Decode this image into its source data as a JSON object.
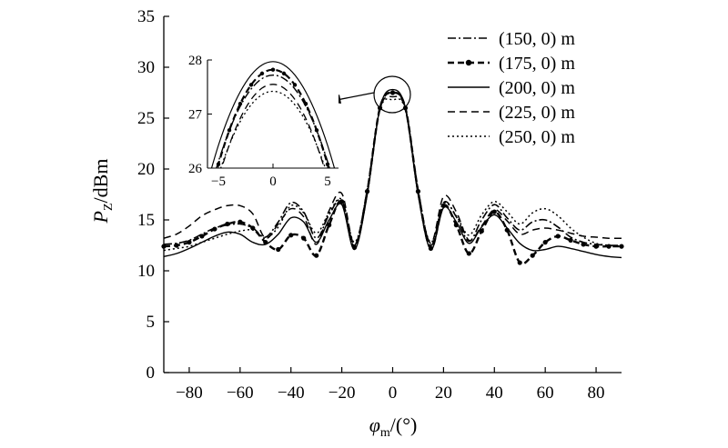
{
  "chart_data": {
    "type": "line",
    "xlabel": "φm/(°)",
    "ylabel": "PZ/dBm",
    "xlim": [
      -90,
      90
    ],
    "ylim": [
      0,
      35
    ],
    "xticks": [
      "−80",
      "−60",
      "−40",
      "−20",
      "0",
      "20",
      "40",
      "60",
      "80"
    ],
    "yticks": [
      "0",
      "5",
      "10",
      "15",
      "20",
      "25",
      "30",
      "35"
    ],
    "legend": "top-right",
    "grid": false,
    "x": [
      -90,
      -85,
      -80,
      -75,
      -70,
      -65,
      -60,
      -55,
      -50,
      -45,
      -40,
      -35,
      -30,
      -25,
      -20,
      -15,
      -10,
      -5,
      0,
      5,
      10,
      15,
      20,
      25,
      30,
      35,
      40,
      45,
      50,
      55,
      60,
      65,
      70,
      75,
      80,
      85,
      90
    ],
    "series": [
      {
        "name": "(150, 0) m",
        "style": "dash-dot",
        "values": [
          12.6,
          12.7,
          13.0,
          13.6,
          14.2,
          14.5,
          14.6,
          14.2,
          13.3,
          14.8,
          16.7,
          15.8,
          13.2,
          15.5,
          16.9,
          12.5,
          18.0,
          26.0,
          27.5,
          26.0,
          18.0,
          12.5,
          16.7,
          15.3,
          12.9,
          15.0,
          16.5,
          15.2,
          14.0,
          14.8,
          15.0,
          14.3,
          13.3,
          12.8,
          12.6,
          12.5,
          12.5
        ]
      },
      {
        "name": "(175, 0) m",
        "style": "dash-marker",
        "values": [
          12.4,
          12.5,
          12.8,
          13.4,
          14.1,
          14.6,
          14.8,
          14.2,
          12.8,
          12.1,
          13.5,
          13.2,
          11.5,
          14.5,
          16.8,
          12.3,
          17.8,
          26.0,
          27.5,
          26.0,
          17.8,
          12.2,
          16.4,
          14.5,
          11.7,
          13.9,
          15.8,
          14.0,
          10.8,
          11.5,
          12.8,
          13.4,
          13.0,
          12.6,
          12.4,
          12.4,
          12.4
        ]
      },
      {
        "name": "(200, 0) m",
        "style": "solid",
        "values": [
          11.4,
          11.7,
          12.2,
          12.8,
          13.4,
          13.8,
          13.6,
          12.8,
          12.6,
          13.6,
          15.2,
          14.8,
          12.8,
          15.0,
          16.5,
          12.1,
          17.5,
          26.0,
          27.8,
          26.0,
          17.5,
          12.1,
          16.2,
          14.8,
          12.7,
          14.3,
          15.5,
          14.2,
          12.7,
          12.0,
          12.1,
          12.4,
          12.2,
          11.9,
          11.6,
          11.4,
          11.3
        ]
      },
      {
        "name": "(225, 0) m",
        "style": "dashed",
        "values": [
          13.2,
          13.6,
          14.4,
          15.4,
          16.0,
          16.4,
          16.4,
          15.6,
          13.2,
          14.6,
          16.1,
          15.3,
          12.6,
          15.9,
          17.6,
          12.6,
          17.8,
          25.9,
          27.1,
          25.9,
          17.8,
          12.7,
          17.3,
          15.8,
          13.0,
          14.4,
          16.0,
          14.9,
          13.6,
          14.0,
          14.2,
          14.0,
          13.7,
          13.4,
          13.3,
          13.2,
          13.2
        ]
      },
      {
        "name": "(250, 0) m",
        "style": "dotted",
        "values": [
          12.0,
          12.2,
          12.4,
          12.8,
          13.2,
          13.6,
          13.9,
          14.0,
          13.2,
          14.3,
          16.4,
          15.7,
          13.7,
          15.7,
          17.0,
          12.8,
          17.6,
          25.8,
          26.8,
          25.8,
          17.6,
          12.8,
          16.6,
          15.4,
          13.5,
          15.5,
          16.8,
          15.8,
          14.6,
          15.7,
          16.1,
          15.4,
          14.2,
          13.3,
          12.7,
          12.5,
          12.4
        ]
      }
    ],
    "inset": {
      "xlim": [
        -6,
        6
      ],
      "ylim": [
        26,
        28
      ],
      "xticks": [
        "−5",
        "0",
        "5"
      ],
      "yticks": [
        "26",
        "27",
        "28"
      ],
      "x": [
        -6,
        -5,
        -4,
        -3,
        -2,
        -1,
        0,
        1,
        2,
        3,
        4,
        5,
        6
      ],
      "peaks": [
        27.72,
        27.82,
        27.97,
        27.55,
        27.42
      ],
      "curvature": [
        0.064,
        0.07,
        0.062,
        0.07,
        0.062
      ]
    }
  }
}
